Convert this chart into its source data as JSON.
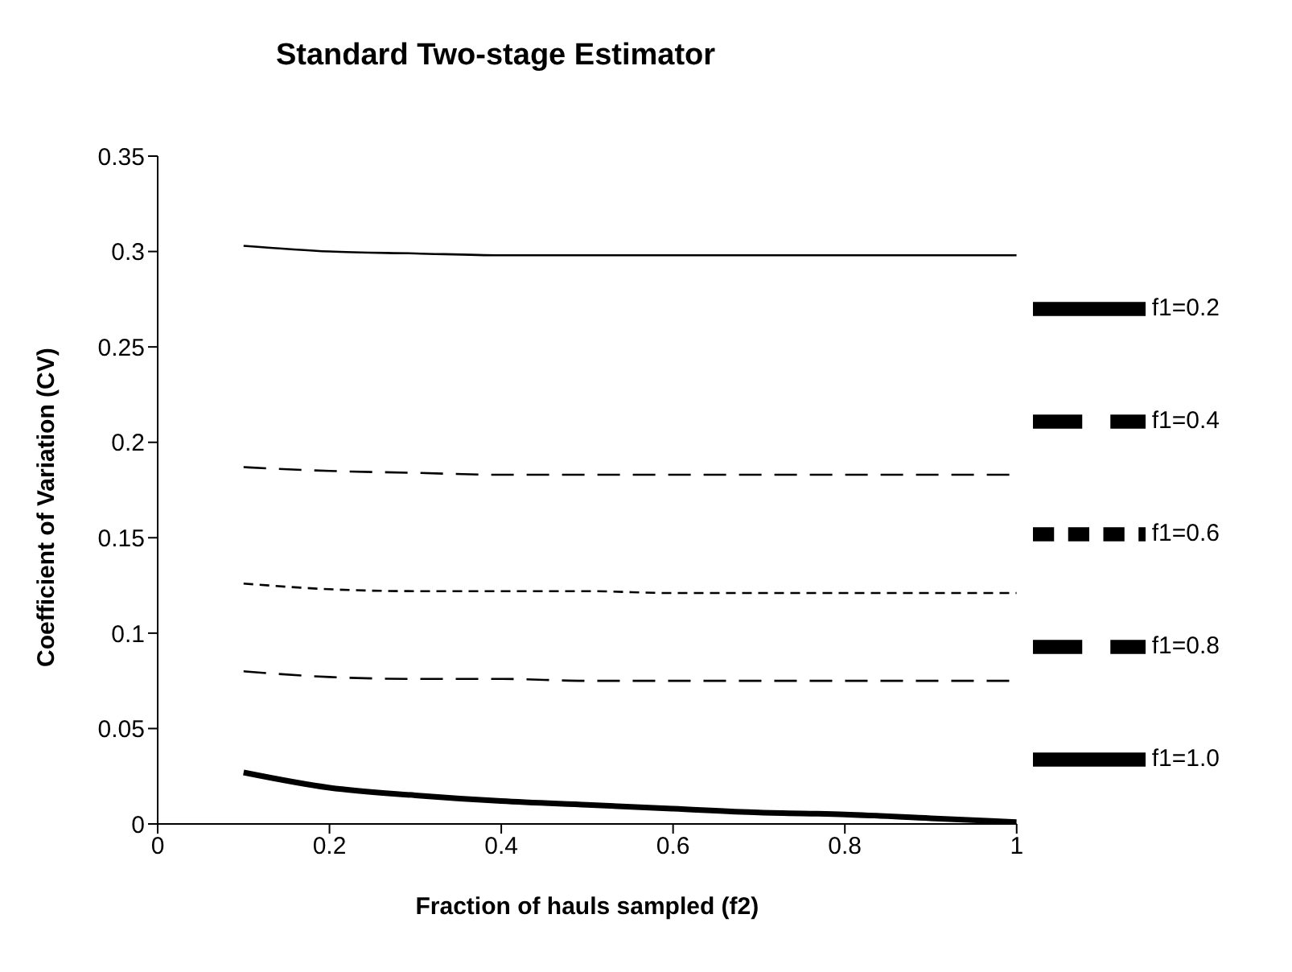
{
  "chart_data": {
    "type": "line",
    "title": "Standard Two-stage Estimator",
    "xlabel": "Fraction of hauls sampled (f2)",
    "ylabel": "Coefficient of Variation (CV)",
    "x": [
      0.1,
      0.2,
      0.3,
      0.4,
      0.5,
      0.6,
      0.7,
      0.8,
      0.9,
      1.0
    ],
    "series": [
      {
        "name": "f1=0.2",
        "color": "#000000",
        "line_style": "solid",
        "values": [
          0.303,
          0.3,
          0.299,
          0.298,
          0.298,
          0.298,
          0.298,
          0.298,
          0.298,
          0.298
        ]
      },
      {
        "name": "f1=0.4",
        "color": "#000000",
        "line_style": "dashed",
        "values": [
          0.187,
          0.185,
          0.184,
          0.183,
          0.183,
          0.183,
          0.183,
          0.183,
          0.183,
          0.183
        ]
      },
      {
        "name": "f1=0.6",
        "color": "#000000",
        "line_style": "dotted",
        "values": [
          0.126,
          0.123,
          0.122,
          0.122,
          0.122,
          0.121,
          0.121,
          0.121,
          0.121,
          0.121
        ]
      },
      {
        "name": "f1=0.8",
        "color": "#000000",
        "line_style": "dashed",
        "values": [
          0.08,
          0.077,
          0.076,
          0.076,
          0.075,
          0.075,
          0.075,
          0.075,
          0.075,
          0.075
        ]
      },
      {
        "name": "f1=1.0",
        "color": "#000000",
        "line_style": "solid",
        "values": [
          0.027,
          0.019,
          0.015,
          0.012,
          0.01,
          0.008,
          0.006,
          0.005,
          0.003,
          0.001
        ]
      }
    ],
    "xlim": [
      0,
      1
    ],
    "xticks": [
      0,
      0.2,
      0.4,
      0.6,
      0.8,
      1
    ],
    "ylim": [
      0,
      0.35
    ],
    "yticks": [
      0,
      0.05,
      0.1,
      0.15,
      0.2,
      0.25,
      0.3,
      0.35
    ],
    "grid": false,
    "legend": "right",
    "marker": "none"
  }
}
